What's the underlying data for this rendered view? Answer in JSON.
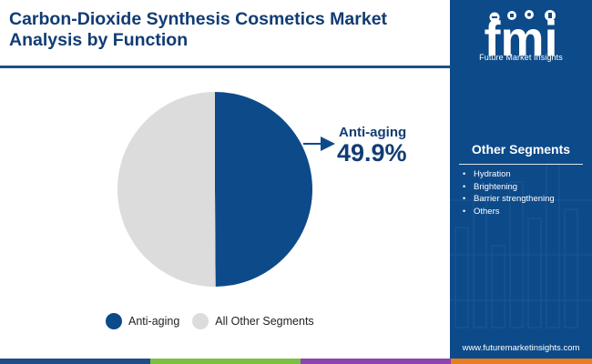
{
  "header": {
    "title_line1": "Carbon-Dioxide Synthesis Cosmetics Market",
    "title_line2": "Analysis by Function"
  },
  "brand": {
    "logo_text": "fmi",
    "company_name": "Future Market Insights",
    "website": "www.futuremarketinsights.com"
  },
  "sidebar": {
    "heading": "Other Segments",
    "items": [
      "Hydration",
      "Brightening",
      "Barrier strengthening",
      "Others"
    ]
  },
  "callout": {
    "label": "Anti-aging",
    "value": "49.9%"
  },
  "legend": {
    "items": [
      "Anti-aging",
      "All Other Segments"
    ]
  },
  "colors": {
    "primary": "#0d4a89",
    "title": "#123c73",
    "other": "#dcdcdc",
    "bottom_bar": [
      "#1d4e89",
      "#7bc043",
      "#8e44ad",
      "#e67e22"
    ]
  },
  "chart_data": {
    "type": "pie",
    "categories": [
      "Anti-aging",
      "All Other Segments"
    ],
    "values": [
      49.9,
      50.1
    ],
    "labels": [
      "49.9%",
      ""
    ],
    "colors": [
      "#0d4a89",
      "#dcdcdc"
    ],
    "legend_position": "bottom"
  }
}
